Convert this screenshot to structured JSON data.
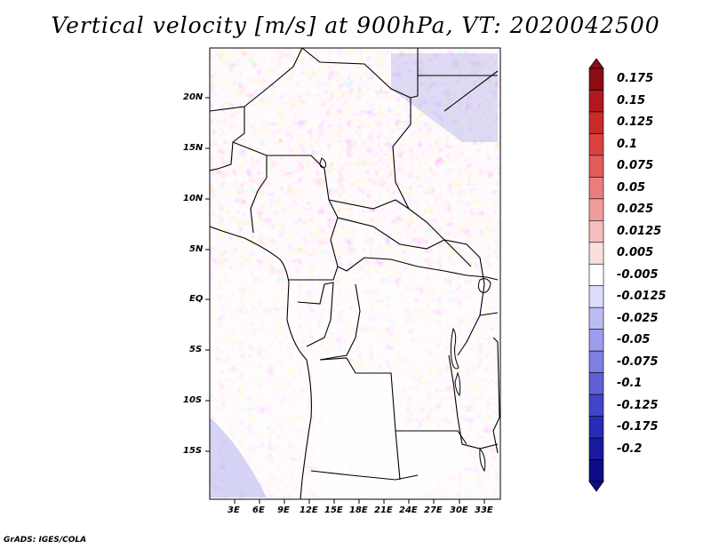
{
  "title": "Vertical velocity [m/s] at 900hPa, VT: 2020042500",
  "credit": "GrADS: IGES/COLA",
  "map": {
    "lon_range": [
      0,
      35
    ],
    "lat_range": [
      -20,
      25
    ],
    "lon_ticks": [
      "3E",
      "6E",
      "9E",
      "12E",
      "15E",
      "18E",
      "21E",
      "24E",
      "27E",
      "30E",
      "33E"
    ],
    "lat_ticks": [
      "20N",
      "15N",
      "10N",
      "5N",
      "EQ",
      "5S",
      "10S",
      "15S"
    ]
  },
  "colorbar": {
    "labels": [
      "0.175",
      "0.15",
      "0.125",
      "0.1",
      "0.075",
      "0.05",
      "0.025",
      "0.0125",
      "0.005",
      "-0.005",
      "-0.0125",
      "-0.025",
      "-0.05",
      "-0.075",
      "-0.1",
      "-0.125",
      "-0.175",
      "-0.2"
    ],
    "colors": [
      "#8b0d13",
      "#b0191f",
      "#c92a2a",
      "#d94141",
      "#e25c5c",
      "#ea7d7d",
      "#f09c9c",
      "#f6bdbd",
      "#fbdede",
      "#ffffff",
      "#dcdcfb",
      "#bcbcf5",
      "#9d9ded",
      "#7e7ee3",
      "#5f5fd7",
      "#4444c8",
      "#2a2ab8",
      "#1a1aa0",
      "#0d0d85"
    ]
  }
}
